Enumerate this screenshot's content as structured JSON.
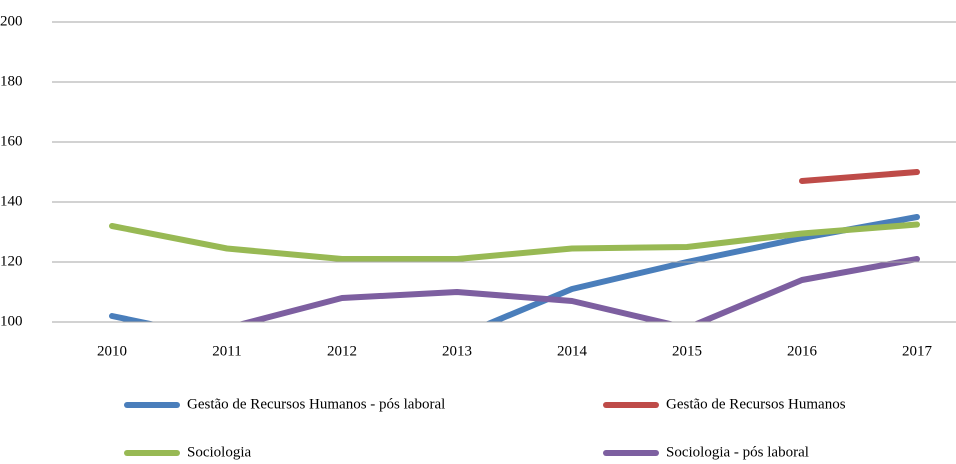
{
  "chart_data": {
    "type": "line",
    "categories": [
      "2010",
      "2011",
      "2012",
      "2013",
      "2014",
      "2015",
      "2016",
      "2017"
    ],
    "series": [
      {
        "name": "Gestão de Recursos Humanos - pós laboral",
        "color": "#4a7ebb",
        "values": [
          102,
          94,
          93,
          95,
          111,
          120,
          128,
          135
        ]
      },
      {
        "name": "Gestão de Recursos Humanos",
        "color": "#be4b48",
        "values": [
          null,
          null,
          null,
          null,
          null,
          null,
          147,
          150
        ]
      },
      {
        "name": "Sociologia",
        "color": "#98b954",
        "values": [
          132,
          124.5,
          121,
          121,
          124.5,
          125,
          129.5,
          132.5
        ]
      },
      {
        "name": "Sociologia - pós laboral",
        "color": "#7d5fa0",
        "values": [
          null,
          98,
          108,
          110,
          107,
          98,
          114,
          121
        ]
      }
    ],
    "ylim": [
      100,
      200
    ],
    "yticks": [
      100,
      120,
      140,
      160,
      180,
      200
    ],
    "grid": true
  }
}
